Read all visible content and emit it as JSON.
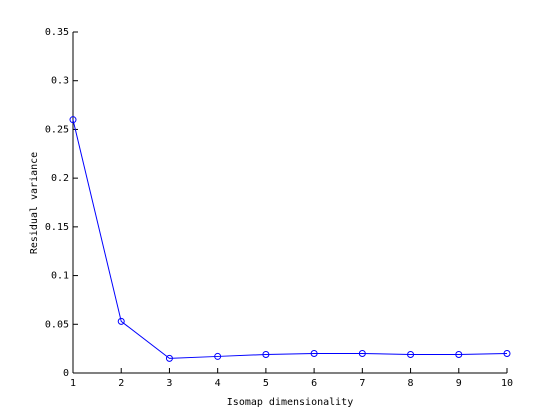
{
  "chart_data": {
    "type": "line",
    "xlabel": "Isomap dimensionality",
    "ylabel": "Residual variance",
    "x": [
      1,
      2,
      3,
      4,
      5,
      6,
      7,
      8,
      9,
      10
    ],
    "series": [
      {
        "color": "#0000ff",
        "marker": "circle",
        "values": [
          0.26,
          0.053,
          0.015,
          0.017,
          0.019,
          0.02,
          0.02,
          0.019,
          0.019,
          0.02
        ]
      }
    ],
    "xlim": [
      1,
      10
    ],
    "xticks": [
      1,
      2,
      3,
      4,
      5,
      6,
      7,
      8,
      9,
      10
    ],
    "ylim": [
      0,
      0.35
    ],
    "yticks": [
      0,
      0.05,
      0.1,
      0.15,
      0.2,
      0.25,
      0.3,
      0.35
    ],
    "grid": false
  }
}
